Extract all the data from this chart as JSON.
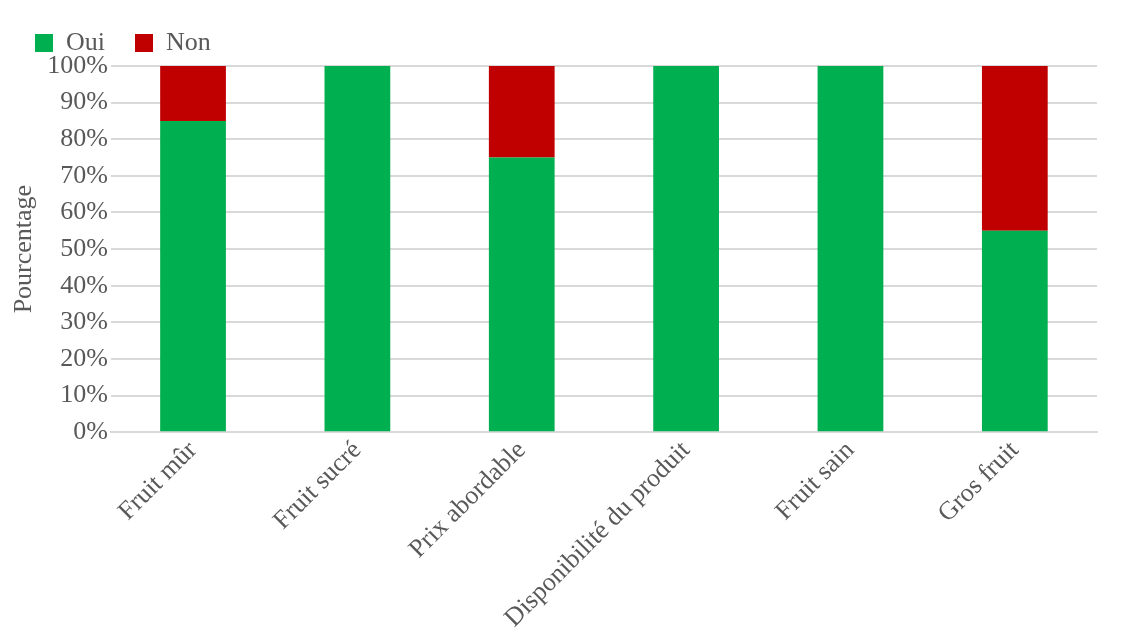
{
  "chart_data": {
    "type": "bar",
    "stacked": true,
    "ylabel": "Pourcentage",
    "categories": [
      "Fruit mûr",
      "Fruit sucré",
      "Prix abordable",
      "Disponibilité du produit",
      "Fruit sain",
      "Gros fruit"
    ],
    "series": [
      {
        "name": "Oui",
        "color": "#00b050",
        "values": [
          85,
          100,
          75,
          100,
          100,
          55
        ]
      },
      {
        "name": "Non",
        "color": "#c00000",
        "values": [
          15,
          0,
          25,
          0,
          0,
          45
        ]
      }
    ],
    "ylim": [
      0,
      100
    ],
    "yticks": [
      {
        "value": 0,
        "label": "0%"
      },
      {
        "value": 10,
        "label": "10%"
      },
      {
        "value": 20,
        "label": "20%"
      },
      {
        "value": 30,
        "label": "30%"
      },
      {
        "value": 40,
        "label": "40%"
      },
      {
        "value": 50,
        "label": "50%"
      },
      {
        "value": 60,
        "label": "60%"
      },
      {
        "value": 70,
        "label": "70%"
      },
      {
        "value": 80,
        "label": "80%"
      },
      {
        "value": 90,
        "label": "90%"
      },
      {
        "value": 100,
        "label": "100%"
      }
    ],
    "grid": "y",
    "legend": "top left"
  }
}
